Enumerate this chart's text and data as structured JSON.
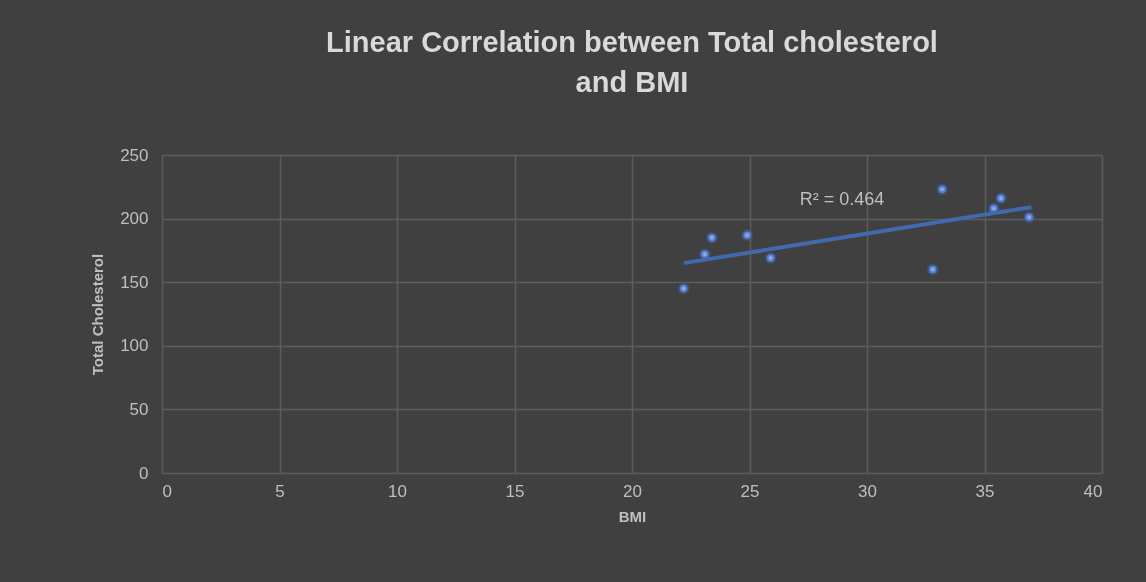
{
  "chart_data": {
    "type": "scatter",
    "title": "Linear Correlation between Total cholesterol and BMI",
    "xlabel": "BMI",
    "ylabel": "Total Cholesterol",
    "xlim": [
      0,
      40
    ],
    "xticks": [
      0,
      5,
      10,
      15,
      20,
      25,
      30,
      35,
      40
    ],
    "ylim": [
      0,
      250
    ],
    "yticks": [
      0,
      50,
      100,
      150,
      200,
      250
    ],
    "grid": true,
    "series": [
      {
        "marker": "circle",
        "color": "#8fb0e8",
        "x": [
          22.2,
          23.1,
          23.4,
          24.9,
          25.9,
          32.8,
          33.2,
          35.4,
          35.7,
          36.9
        ],
        "values": [
          145,
          172,
          185,
          187,
          169,
          160,
          223,
          208,
          216,
          201
        ]
      },
      {
        "type": "line",
        "color": "#4169ad",
        "x": [
          22.2,
          37
        ],
        "values": [
          165,
          209
        ]
      }
    ],
    "annotations": [
      "R² = 0.464"
    ]
  }
}
